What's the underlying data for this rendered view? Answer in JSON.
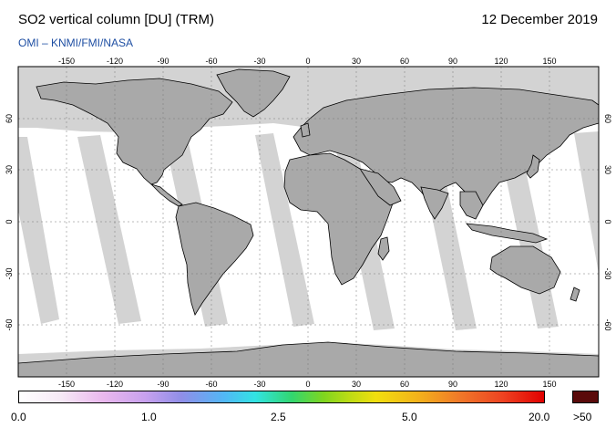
{
  "header": {
    "title": "SO2 vertical column [DU] (TRM)",
    "date": "12 December 2019",
    "credit": "OMI  –  KNMI/FMI/NASA"
  },
  "map": {
    "longitude_ticks": [
      "-150",
      "-120",
      "-90",
      "-60",
      "-30",
      "0",
      "30",
      "60",
      "90",
      "120",
      "150"
    ],
    "latitude_ticks": [
      "60",
      "30",
      "0",
      "-30",
      "-60"
    ],
    "colors": {
      "no_data": "#d3d3d3",
      "land_night": "#a9a9a9",
      "background": "#ffffff",
      "coastline": "#000000"
    }
  },
  "colorbar": {
    "labels": [
      "0.0",
      "1.0",
      "2.5",
      "5.0",
      "20.0"
    ],
    "overflow_label": ">50",
    "overflow_color": "#5a0a0a"
  }
}
